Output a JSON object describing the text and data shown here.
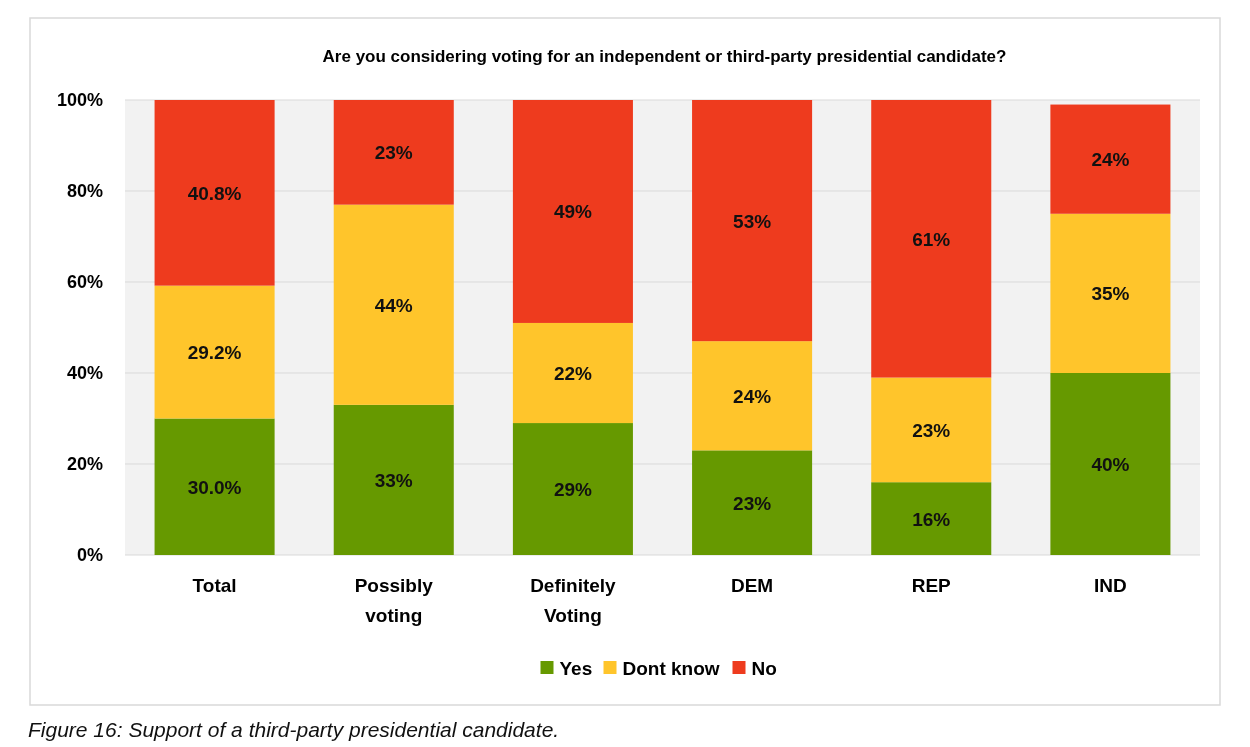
{
  "chart_data": {
    "type": "bar",
    "stacked": true,
    "title": "Are you considering voting for an independent or third-party presidential candidate?",
    "categories": [
      "Total",
      "Possibly voting",
      "Definitely Voting",
      "DEM",
      "REP",
      "IND"
    ],
    "series": [
      {
        "name": "Yes",
        "color": "#669900",
        "values": [
          30.0,
          33,
          29,
          23,
          16,
          40
        ],
        "value_labels": [
          "30.0%",
          "33%",
          "29%",
          "23%",
          "16%",
          "40%"
        ]
      },
      {
        "name": "Dont know",
        "color": "#ffc52b",
        "values": [
          29.2,
          44,
          22,
          24,
          23,
          35
        ],
        "value_labels": [
          "29.2%",
          "44%",
          "22%",
          "24%",
          "23%",
          "35%"
        ]
      },
      {
        "name": "No",
        "color": "#ee3b1e",
        "values": [
          40.8,
          23,
          49,
          53,
          61,
          24
        ],
        "value_labels": [
          "40.8%",
          "23%",
          "49%",
          "53%",
          "61%",
          "24%"
        ]
      }
    ],
    "ylim": [
      0,
      100
    ],
    "yticks": [
      {
        "value": 0,
        "label": "0%"
      },
      {
        "value": 20,
        "label": "20%"
      },
      {
        "value": 40,
        "label": "40%"
      },
      {
        "value": 60,
        "label": "60%"
      },
      {
        "value": 80,
        "label": "80%"
      },
      {
        "value": 100,
        "label": "100%"
      }
    ],
    "grid": "y",
    "legend": "bottom",
    "annotations": [
      "Figure 16: Support of a third-party presidential candidate."
    ]
  }
}
